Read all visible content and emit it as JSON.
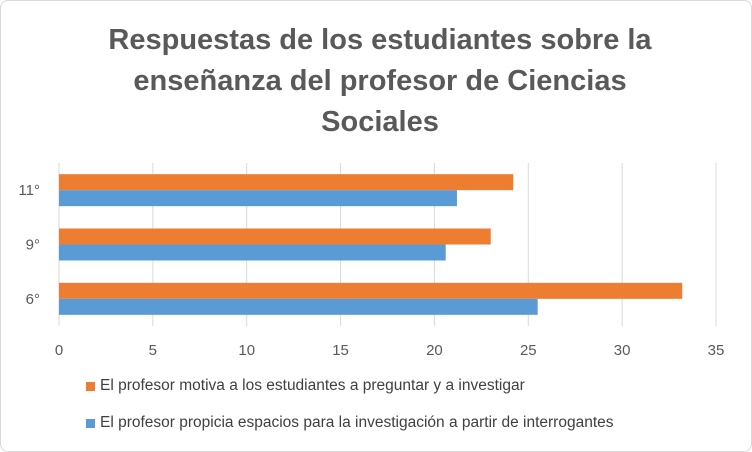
{
  "chart_data": {
    "type": "bar",
    "orientation": "horizontal",
    "title": "Respuestas de los estudiantes sobre la\nenseñanza del profesor de Ciencias\nSociales",
    "categories": [
      "6°",
      "9°",
      "11°"
    ],
    "series": [
      {
        "name": "El profesor propicia espacios para la investigación a partir de interrogantes",
        "color": "#5B9BD5",
        "values": [
          25.5,
          20.6,
          21.2
        ]
      },
      {
        "name": "El profesor motiva a los estudiantes a preguntar y a investigar",
        "color": "#ED7D31",
        "values": [
          33.2,
          23.0,
          24.2
        ]
      }
    ],
    "xlim": [
      0,
      35
    ],
    "xticks": [
      0,
      5,
      10,
      15,
      20,
      25,
      30,
      35
    ],
    "grid": true,
    "legend_position": "bottom"
  }
}
